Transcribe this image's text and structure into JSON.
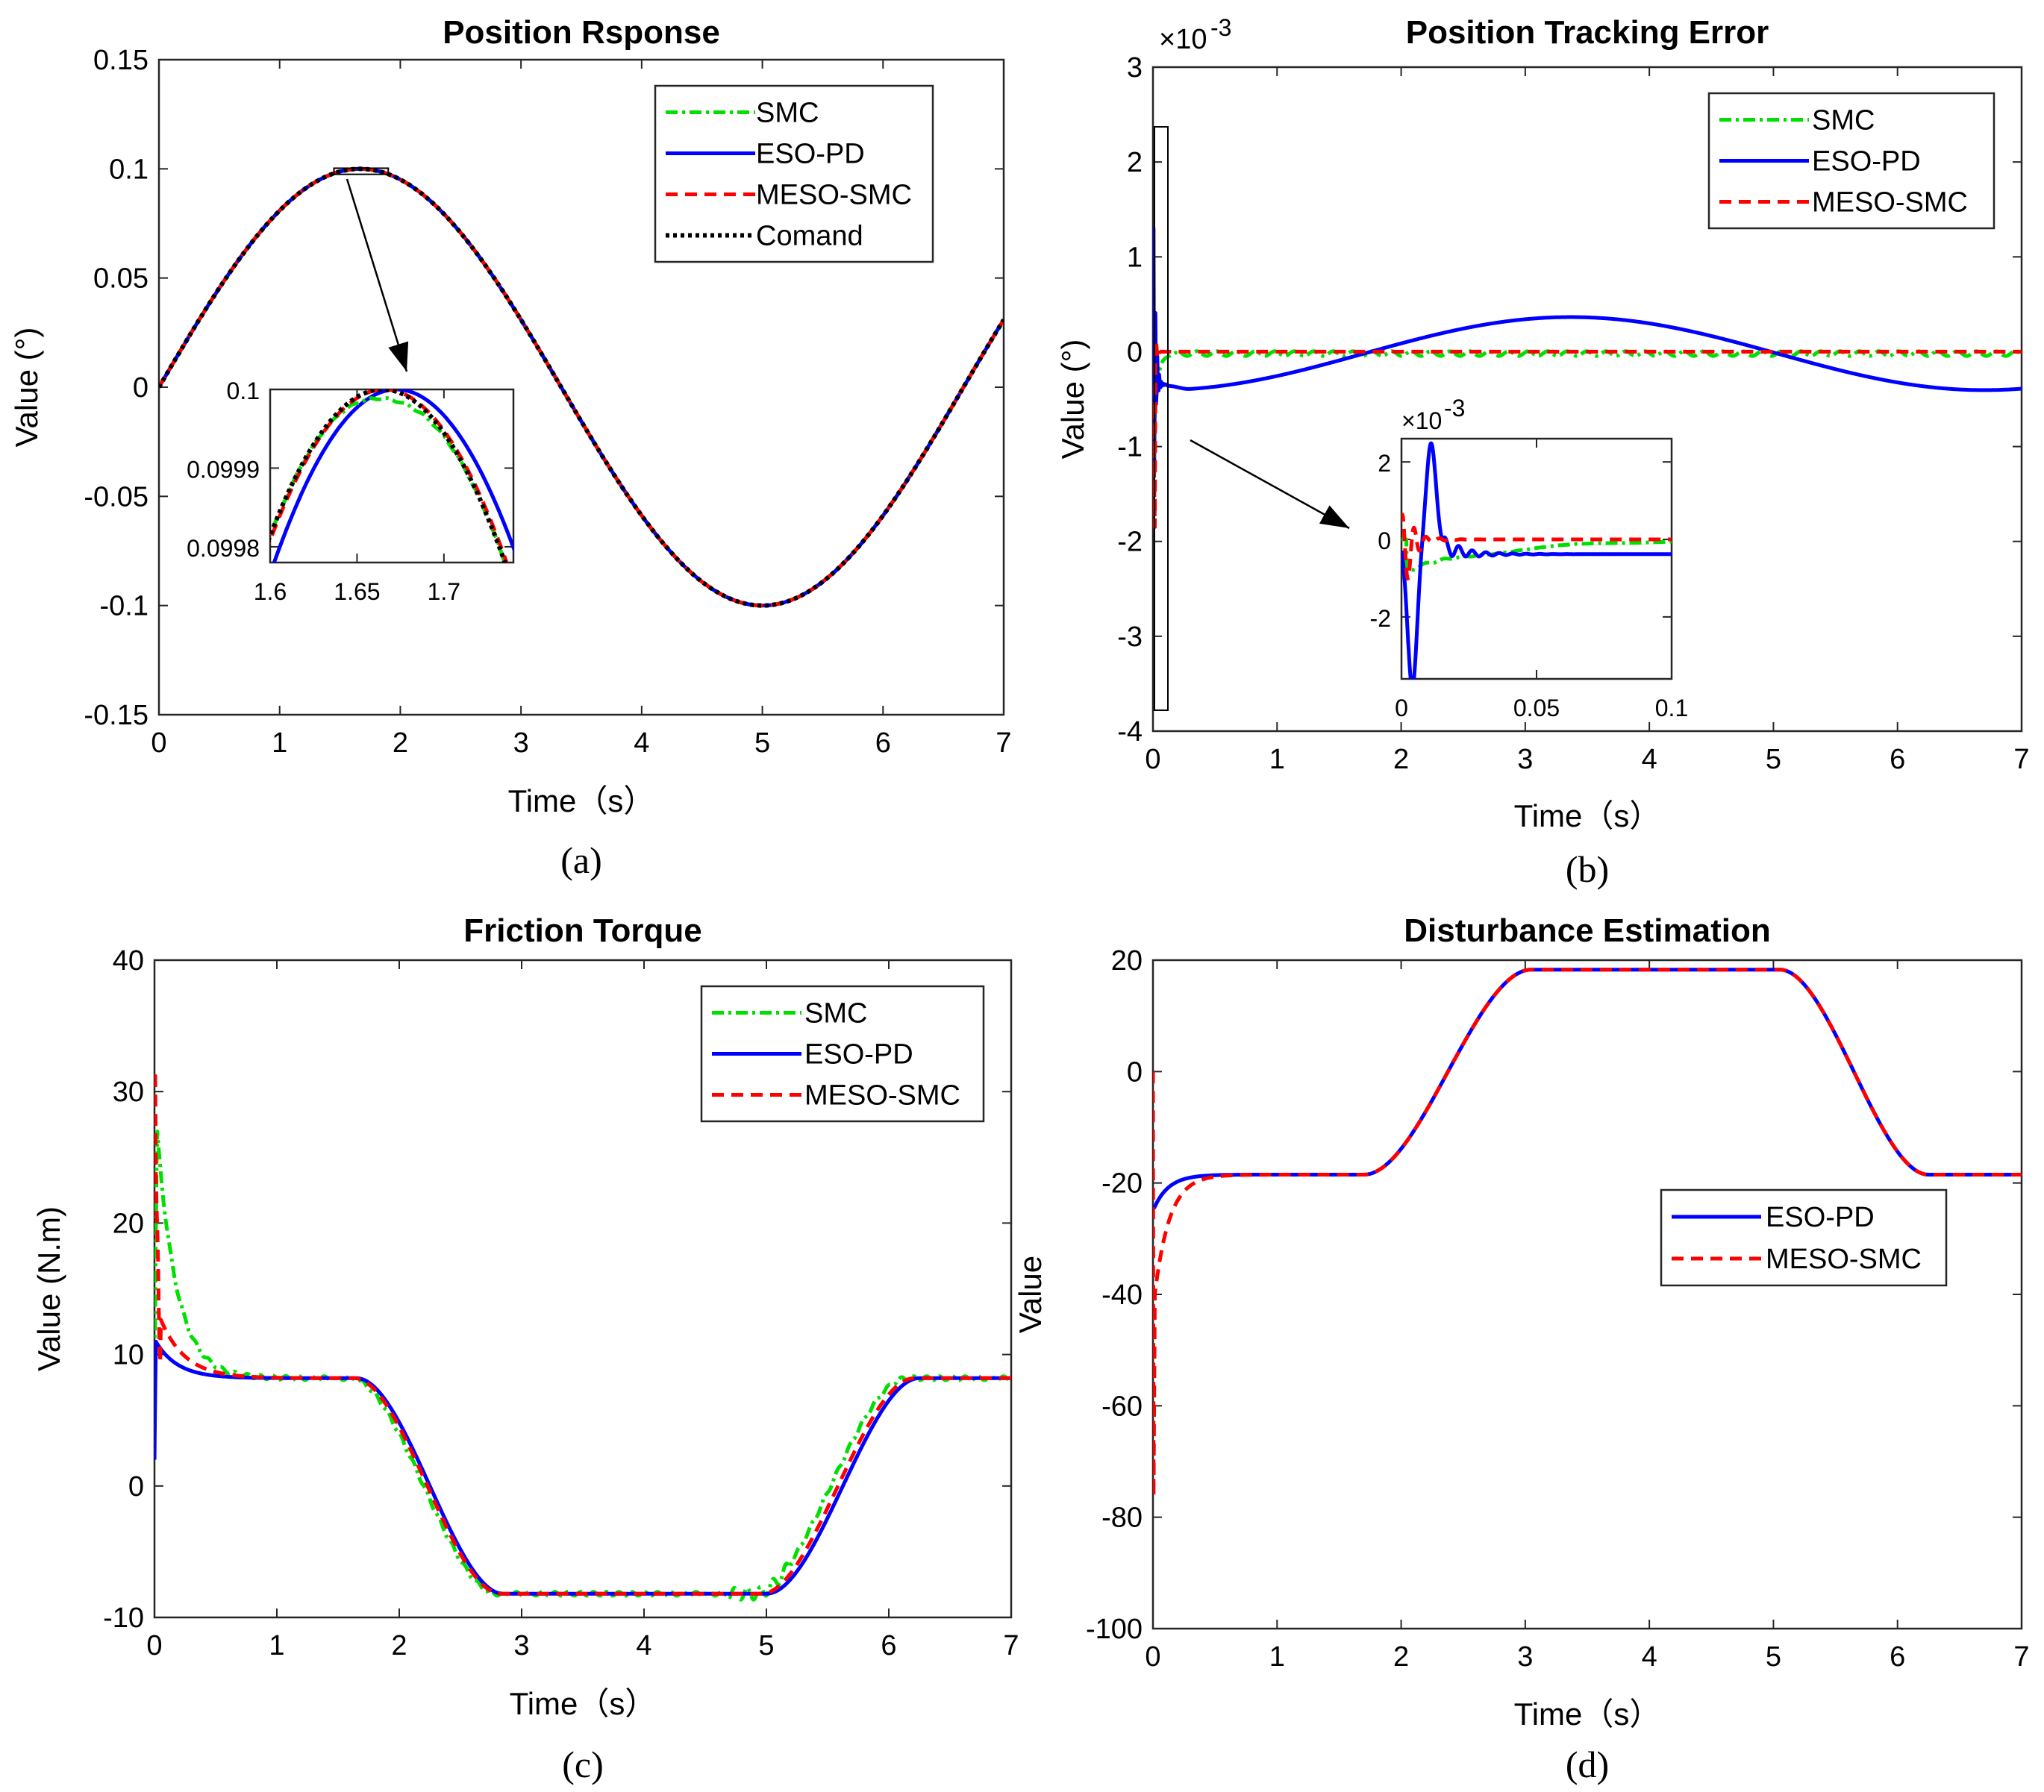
{
  "colors": {
    "SMC": "#00e000",
    "ESO-PD": "#0000ff",
    "MESO-SMC": "#ff0000",
    "Comand": "#000000"
  },
  "chart_data": [
    {
      "id": "a",
      "type": "line",
      "caption": "(a)",
      "title": "Position Rsponse",
      "xlabel": "Time（s）",
      "ylabel": "Value (°)",
      "xlim": [
        0,
        7
      ],
      "ylim": [
        -0.15,
        0.15
      ],
      "xticks": [
        "0",
        "1",
        "2",
        "3",
        "4",
        "5",
        "6",
        "7"
      ],
      "yticks": [
        "0.15",
        "0.1",
        "0.05",
        "0",
        "-0.05",
        "-0.1",
        "-0.15"
      ],
      "legend": [
        "SMC",
        "ESO-PD",
        "MESO-SMC",
        "Comand"
      ],
      "series": [
        {
          "name": "SMC",
          "function": "0.1*sin(0.9425*t)"
        },
        {
          "name": "ESO-PD",
          "function": "0.1*sin(0.9425*t)"
        },
        {
          "name": "MESO-SMC",
          "function": "0.1*sin(0.9425*t)"
        },
        {
          "name": "Comand",
          "function": "0.1*sin(0.9425*t)"
        }
      ],
      "inset": {
        "xlim": [
          1.6,
          1.74
        ],
        "ylim": [
          0.09978,
          0.1
        ],
        "xticks": [
          "1.6",
          "1.65",
          "1.7"
        ],
        "yticks": [
          "0.1",
          "0.0999",
          "0.0998"
        ]
      }
    },
    {
      "id": "b",
      "type": "line",
      "caption": "(b)",
      "title": "Position Tracking Error",
      "xlabel": "Time（s）",
      "ylabel": "Value (°)",
      "exponent": "×10",
      "exponent_power": "-3",
      "xlim": [
        0,
        7
      ],
      "ylim": [
        -4,
        3
      ],
      "xticks": [
        "0",
        "1",
        "2",
        "3",
        "4",
        "5",
        "6",
        "7"
      ],
      "yticks": [
        "3",
        "2",
        "1",
        "0",
        "-1",
        "-2",
        "-3",
        "-4"
      ],
      "legend": [
        "SMC",
        "ESO-PD",
        "MESO-SMC"
      ],
      "series": [
        {
          "name": "SMC",
          "note": "settles near 0 (x1e-3)"
        },
        {
          "name": "ESO-PD",
          "note": "approx -0.35 at t=0.3, +0.38 at t=3.3, -0.38 at t=6.7 (x1e-3), peak 2.3 near t=0.01"
        },
        {
          "name": "MESO-SMC",
          "note": "settles at 0 (x1e-3)"
        }
      ],
      "inset": {
        "xlim": [
          0,
          0.1
        ],
        "ylim": [
          -3.6,
          2.6
        ],
        "xticks": [
          "0",
          "0.05",
          "0.1"
        ],
        "yticks": [
          "2",
          "0",
          "-2"
        ],
        "exponent": "×10",
        "exponent_power": "-3"
      }
    },
    {
      "id": "c",
      "type": "line",
      "caption": "(c)",
      "title": "Friction Torque",
      "xlabel": "Time（s）",
      "ylabel": "Value (N.m)",
      "xlim": [
        0,
        7
      ],
      "ylim": [
        -10,
        40
      ],
      "xticks": [
        "0",
        "1",
        "2",
        "3",
        "4",
        "5",
        "6",
        "7"
      ],
      "yticks": [
        "40",
        "30",
        "20",
        "10",
        "0",
        "-10"
      ],
      "legend": [
        "SMC",
        "ESO-PD",
        "MESO-SMC"
      ],
      "series": [
        {
          "name": "SMC",
          "note": "starts ~27, decays to 8.2; -8.2 between t=2.8 and 5.0; back to 8.2 after 6.3"
        },
        {
          "name": "ESO-PD",
          "note": "starts ~11, decays to 8.2; same plateau shape"
        },
        {
          "name": "MESO-SMC",
          "note": "spike to 31 at t=0, decays to 8.2; same plateau shape"
        }
      ]
    },
    {
      "id": "d",
      "type": "line",
      "caption": "(d)",
      "title": "Disturbance Estimation",
      "xlabel": "Time（s）",
      "ylabel": "Value",
      "xlim": [
        0,
        7
      ],
      "ylim": [
        -100,
        20
      ],
      "xticks": [
        "0",
        "1",
        "2",
        "3",
        "4",
        "5",
        "6",
        "7"
      ],
      "yticks": [
        "20",
        "0",
        "-20",
        "-40",
        "-60",
        "-80",
        "-100"
      ],
      "legend": [
        "ESO-PD",
        "MESO-SMC"
      ],
      "series": [
        {
          "name": "ESO-PD",
          "note": "starts ~-24, converges to -18.5"
        },
        {
          "name": "MESO-SMC",
          "note": "dips to -80 at t=0, converges to -18.5; rises to 18.3 between t=1.75 and 3.0; falls back to -18.5 after t=5.1"
        }
      ]
    }
  ]
}
